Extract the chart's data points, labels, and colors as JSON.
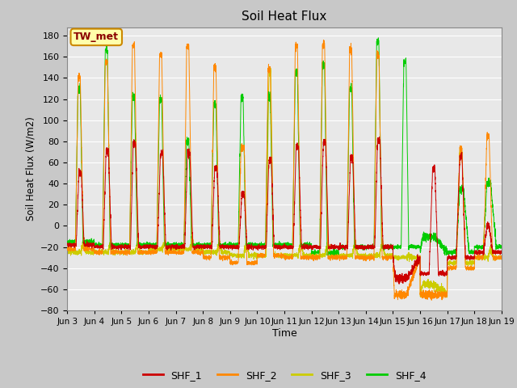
{
  "title": "Soil Heat Flux",
  "ylabel": "Soil Heat Flux (W/m2)",
  "xlabel": "Time",
  "ylim": [
    -80,
    188
  ],
  "yticks": [
    -80,
    -60,
    -40,
    -20,
    0,
    20,
    40,
    60,
    80,
    100,
    120,
    140,
    160,
    180
  ],
  "series_colors": {
    "SHF_1": "#cc0000",
    "SHF_2": "#ff8800",
    "SHF_3": "#cccc00",
    "SHF_4": "#00cc00"
  },
  "series_names": [
    "SHF_1",
    "SHF_2",
    "SHF_3",
    "SHF_4"
  ],
  "legend_label": "TW_met",
  "fig_facecolor": "#c8c8c8",
  "ax_facecolor": "#e8e8e8",
  "grid_color": "#ffffff",
  "n_days": 16,
  "start_day": 3,
  "points_per_day": 288
}
